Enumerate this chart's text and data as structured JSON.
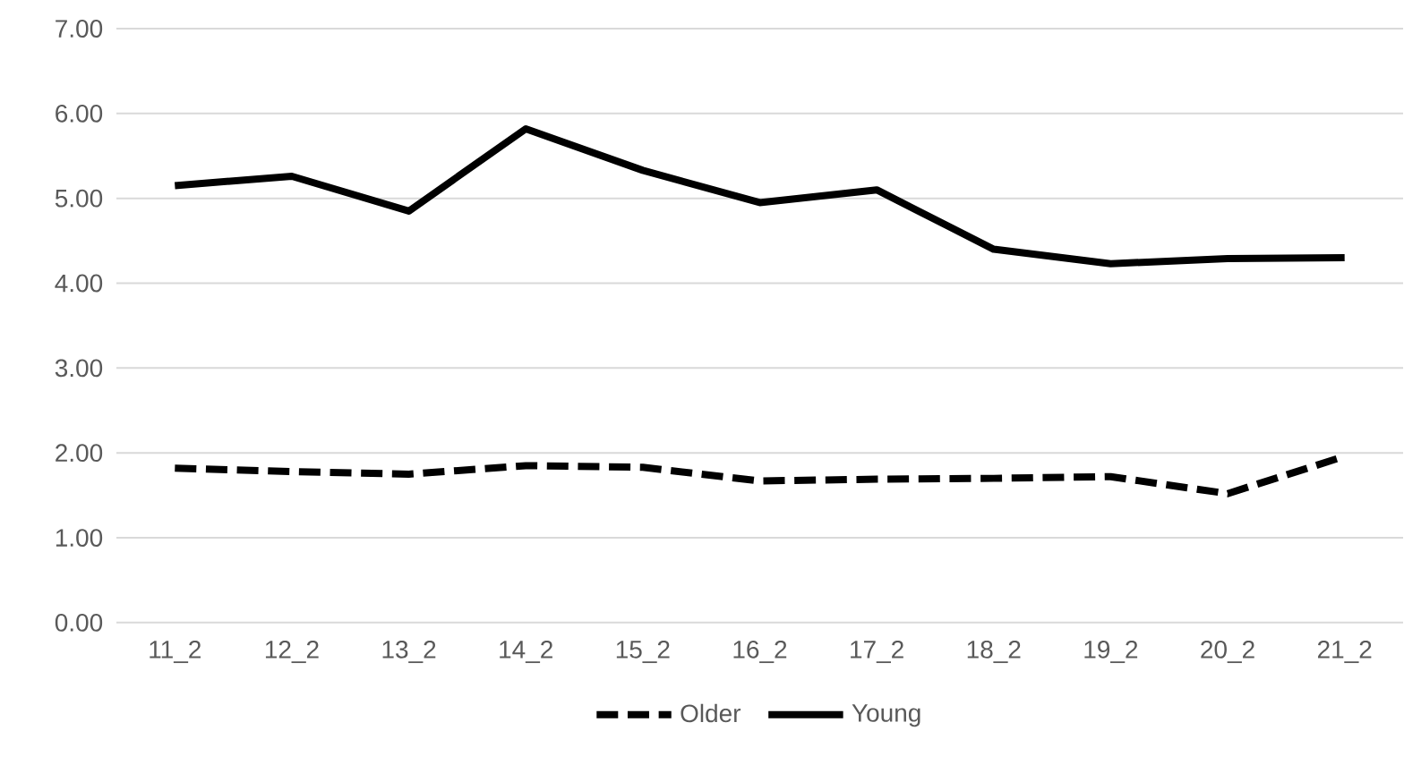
{
  "chart_data": {
    "type": "line",
    "categories": [
      "11_2",
      "12_2",
      "13_2",
      "14_2",
      "15_2",
      "16_2",
      "17_2",
      "18_2",
      "19_2",
      "20_2",
      "21_2"
    ],
    "series": [
      {
        "name": "Older",
        "color": "#000000",
        "line_style": "dashed",
        "values": [
          1.82,
          1.78,
          1.75,
          1.85,
          1.83,
          1.67,
          1.69,
          1.7,
          1.72,
          1.52,
          1.96
        ]
      },
      {
        "name": "Young",
        "color": "#000000",
        "line_style": "solid",
        "values": [
          5.15,
          5.26,
          4.85,
          5.82,
          5.33,
          4.95,
          5.1,
          4.4,
          4.23,
          4.29,
          4.3
        ]
      }
    ],
    "ylim": [
      0,
      7
    ],
    "yticks": [
      {
        "value": 0,
        "label": "0.00"
      },
      {
        "value": 1,
        "label": "1.00"
      },
      {
        "value": 2,
        "label": "2.00"
      },
      {
        "value": 3,
        "label": "3.00"
      },
      {
        "value": 4,
        "label": "4.00"
      },
      {
        "value": 5,
        "label": "5.00"
      },
      {
        "value": 6,
        "label": "6.00"
      },
      {
        "value": 7,
        "label": "7.00"
      }
    ],
    "grid": "y",
    "legend": "bottom",
    "marker": "none"
  }
}
